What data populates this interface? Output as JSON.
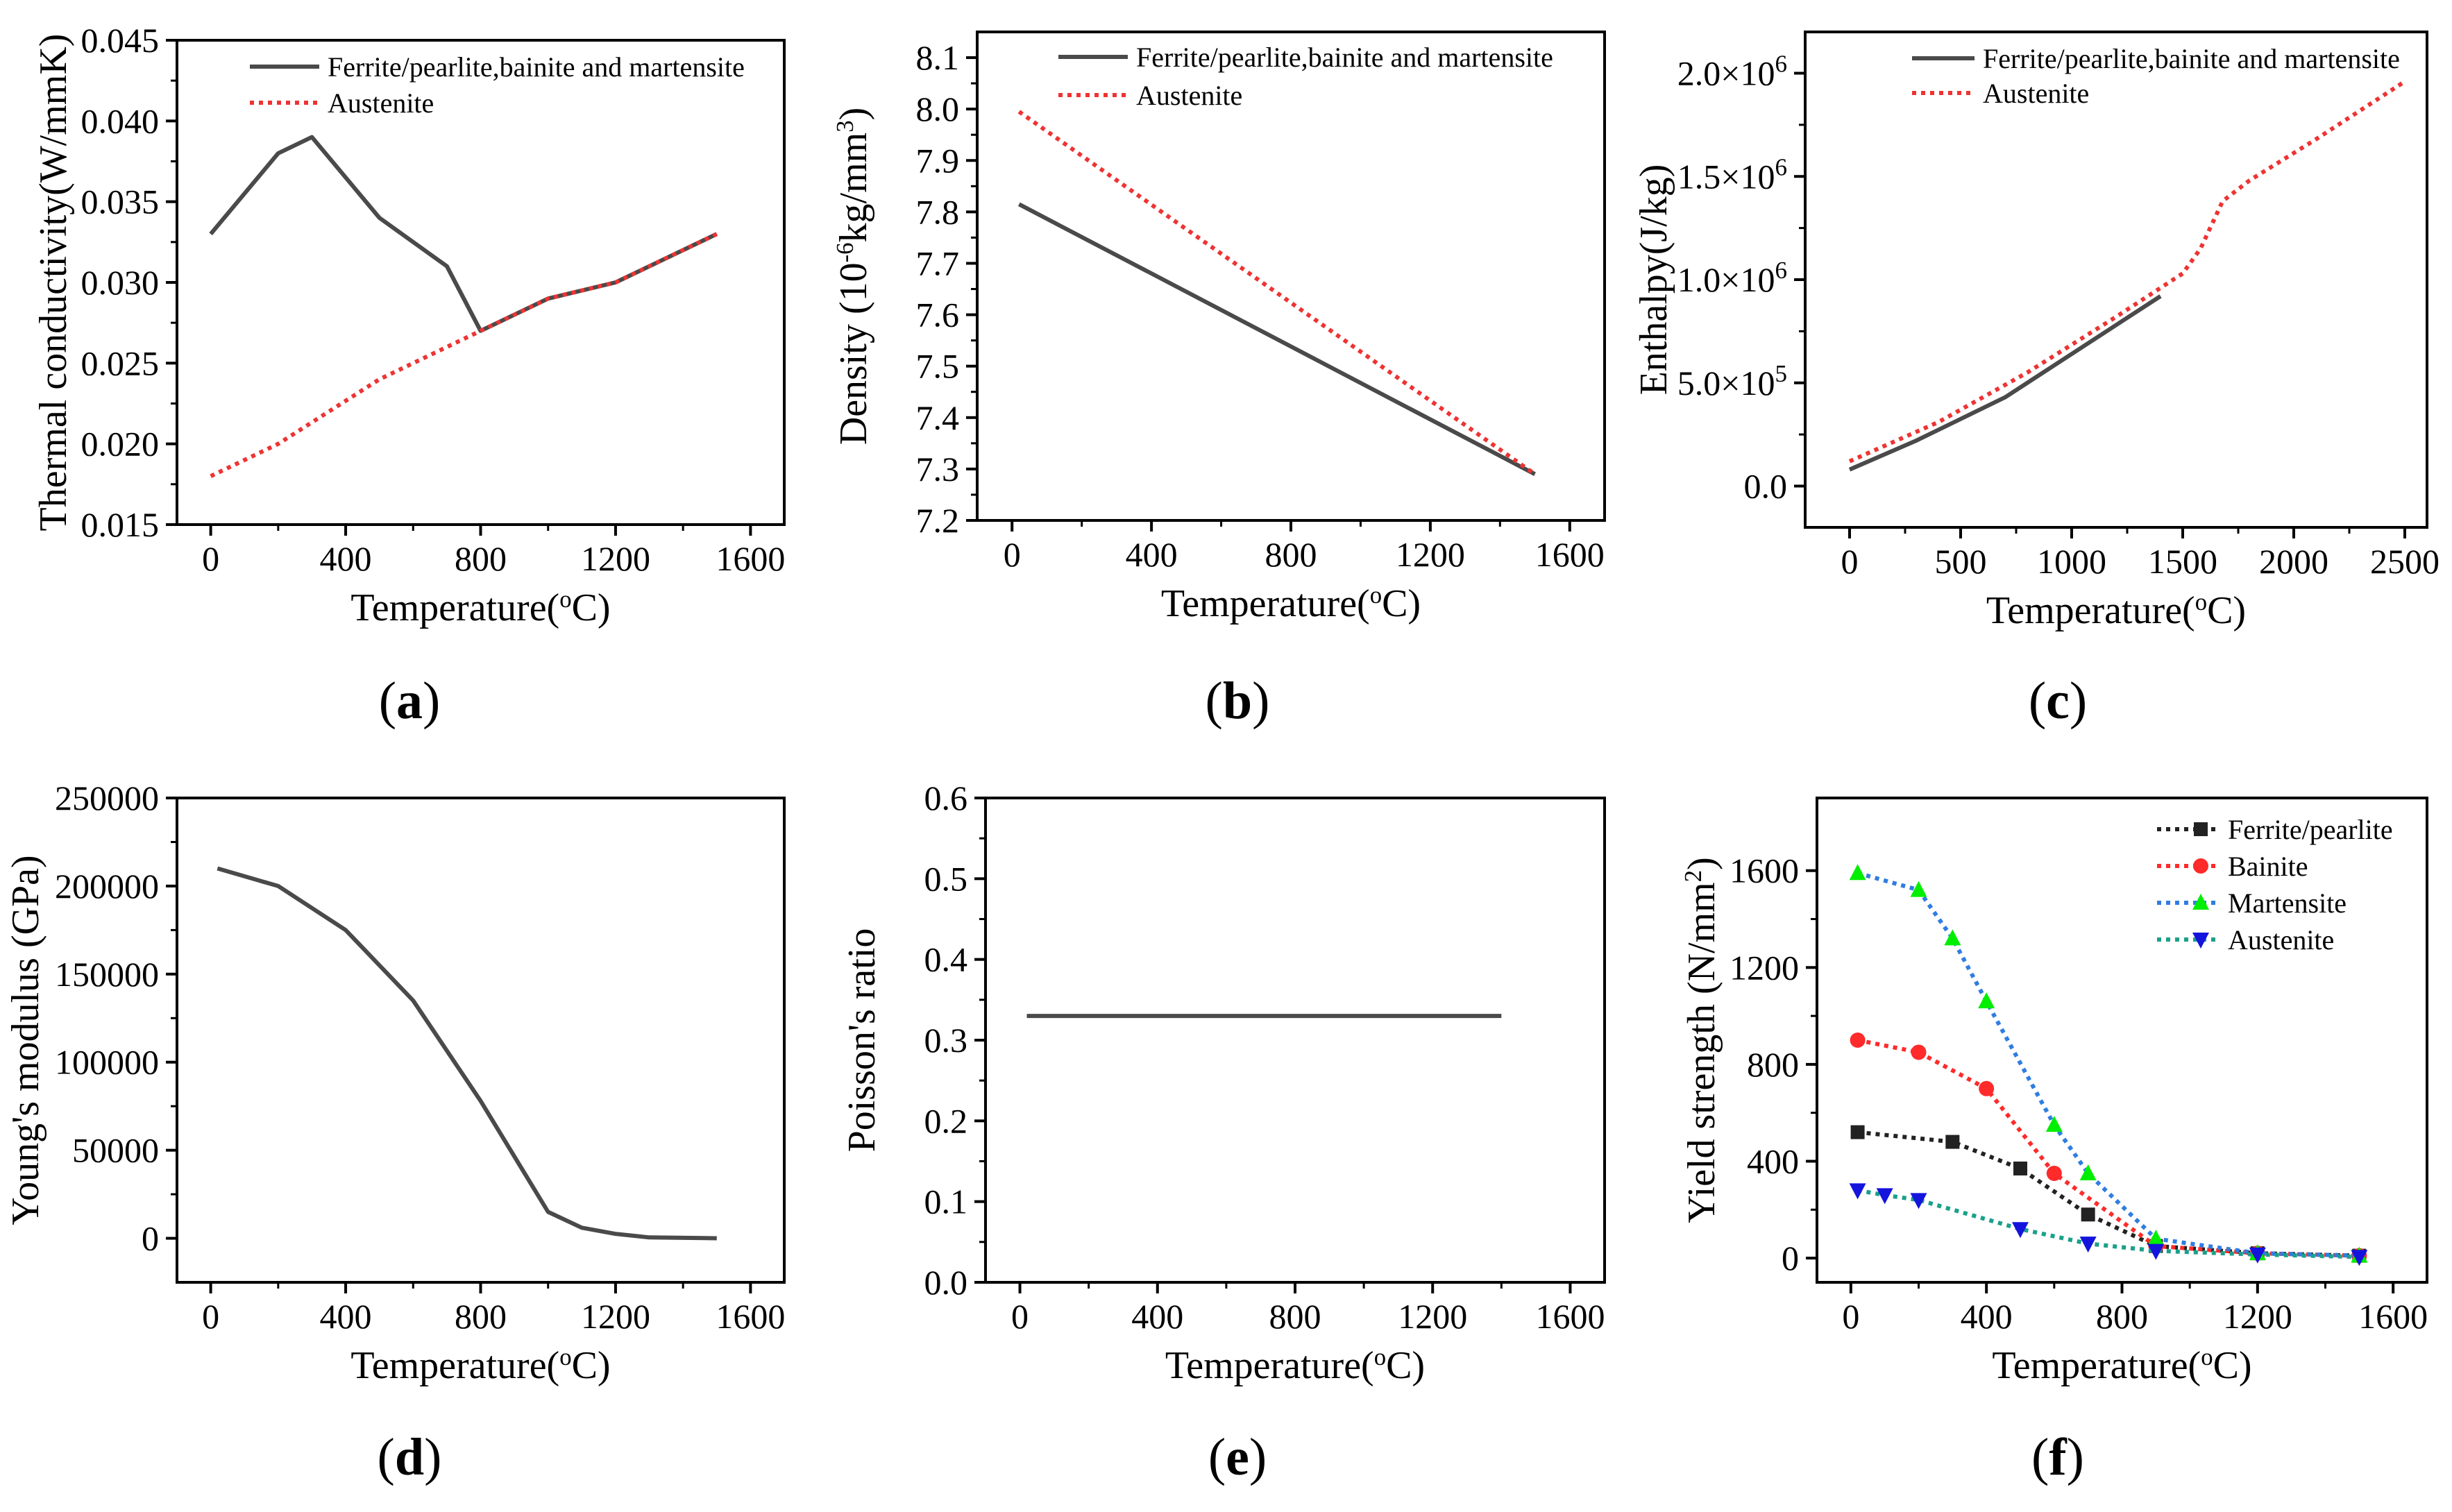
{
  "chart_data": [
    {
      "panel": "a",
      "type": "line",
      "label": "(a)",
      "xlabel": "Temperature(°C)",
      "ylabel": "Thermal conductivity(W/mmK)",
      "xlim": [
        -100,
        1700
      ],
      "ylim": [
        0.015,
        0.045
      ],
      "xticks": [
        0,
        400,
        800,
        1200,
        1600
      ],
      "yticks": [
        0.015,
        0.02,
        0.025,
        0.03,
        0.035,
        0.04,
        0.045
      ],
      "ytick_labels": [
        "0.015",
        "0.020",
        "0.025",
        "0.030",
        "0.035",
        "0.040",
        "0.045"
      ],
      "legend_position": "top-right",
      "series": [
        {
          "name": "Ferrite/pearlite,bainite and martensite",
          "color": "#4a4a4a",
          "style": "solid",
          "x": [
            0,
            200,
            300,
            500,
            700,
            800,
            1000,
            1200,
            1500
          ],
          "y": [
            0.033,
            0.038,
            0.039,
            0.034,
            0.031,
            0.027,
            0.029,
            0.03,
            0.033
          ]
        },
        {
          "name": "Austenite",
          "color": "#ee3333",
          "style": "dotted",
          "x": [
            0,
            200,
            500,
            800,
            1000,
            1200,
            1500
          ],
          "y": [
            0.018,
            0.02,
            0.024,
            0.027,
            0.029,
            0.03,
            0.033
          ]
        }
      ]
    },
    {
      "panel": "b",
      "type": "line",
      "label": "(b)",
      "xlabel": "Temperature(°C)",
      "ylabel": "Density (10⁻⁶kg/mm³)",
      "xlim": [
        -100,
        1700
      ],
      "ylim": [
        7.2,
        8.15
      ],
      "xticks": [
        0,
        400,
        800,
        1200,
        1600
      ],
      "yticks": [
        7.2,
        7.3,
        7.4,
        7.5,
        7.6,
        7.7,
        7.8,
        7.9,
        8.0,
        8.1
      ],
      "ytick_labels": [
        "7.2",
        "7.3",
        "7.4",
        "7.5",
        "7.6",
        "7.7",
        "7.8",
        "7.9",
        "8.0",
        "8.1"
      ],
      "legend_position": "top-right",
      "series": [
        {
          "name": "Ferrite/pearlite,bainite and martensite",
          "color": "#4a4a4a",
          "style": "solid",
          "x": [
            20,
            1500
          ],
          "y": [
            7.815,
            7.29
          ]
        },
        {
          "name": "Austenite",
          "color": "#ee3333",
          "style": "dotted",
          "x": [
            20,
            1500
          ],
          "y": [
            7.995,
            7.29
          ]
        }
      ]
    },
    {
      "panel": "c",
      "type": "line",
      "label": "(c)",
      "xlabel": "Temperature(°C)",
      "ylabel": "Enthalpy(J/kg)",
      "xlim": [
        -200,
        2600
      ],
      "ylim": [
        -200000,
        2200000
      ],
      "xticks": [
        0,
        500,
        1000,
        1500,
        2000,
        2500
      ],
      "yticks": [
        0,
        500000,
        1000000,
        1500000,
        2000000
      ],
      "ytick_labels": [
        "0.0",
        "5.0×10⁵",
        "1.0×10⁶",
        "1.5×10⁶",
        "2.0×10⁶"
      ],
      "legend_position": "top-left",
      "series": [
        {
          "name": "Ferrite/pearlite,bainite and martensite",
          "color": "#4a4a4a",
          "style": "solid",
          "x": [
            0,
            300,
            700,
            1000,
            1400
          ],
          "y": [
            80000,
            220000,
            430000,
            640000,
            920000
          ]
        },
        {
          "name": "Austenite",
          "color": "#ee3333",
          "style": "dotted",
          "x": [
            0,
            400,
            800,
            1200,
            1500,
            1580,
            1680,
            1800,
            2100,
            2500
          ],
          "y": [
            120000,
            310000,
            550000,
            820000,
            1030000,
            1150000,
            1380000,
            1480000,
            1680000,
            1960000
          ]
        }
      ]
    },
    {
      "panel": "d",
      "type": "line",
      "label": "(d)",
      "xlabel": "Temperature(°C)",
      "ylabel": "Young's modulus (GPa)",
      "xlim": [
        -100,
        1700
      ],
      "ylim": [
        -25000,
        250000
      ],
      "xticks": [
        0,
        400,
        800,
        1200,
        1600
      ],
      "yticks": [
        0,
        50000,
        100000,
        150000,
        200000,
        250000
      ],
      "ytick_labels": [
        "0",
        "50000",
        "100000",
        "150000",
        "200000",
        "250000"
      ],
      "series": [
        {
          "name": "Young's modulus",
          "color": "#4a4a4a",
          "style": "solid",
          "x": [
            20,
            200,
            400,
            600,
            800,
            1000,
            1100,
            1200,
            1300,
            1500
          ],
          "y": [
            210000,
            200000,
            175000,
            135000,
            78000,
            15000,
            6000,
            2500,
            500,
            0
          ]
        }
      ]
    },
    {
      "panel": "e",
      "type": "line",
      "label": "(e)",
      "xlabel": "Temperature(°C)",
      "ylabel": "Poisson's ratio",
      "xlim": [
        -100,
        1700
      ],
      "ylim": [
        0.0,
        0.6
      ],
      "xticks": [
        0,
        400,
        800,
        1200,
        1600
      ],
      "yticks": [
        0.0,
        0.1,
        0.2,
        0.3,
        0.4,
        0.5,
        0.6
      ],
      "ytick_labels": [
        "0.0",
        "0.1",
        "0.2",
        "0.3",
        "0.4",
        "0.5",
        "0.6"
      ],
      "series": [
        {
          "name": "Poisson's ratio",
          "color": "#4a4a4a",
          "style": "solid",
          "x": [
            20,
            1400
          ],
          "y": [
            0.33,
            0.33
          ]
        }
      ]
    },
    {
      "panel": "f",
      "type": "line",
      "label": "(f)",
      "xlabel": "Temperature(°C)",
      "ylabel": "Yield strength (N/mm²)",
      "xlim": [
        -100,
        1700
      ],
      "ylim": [
        -100,
        1900
      ],
      "xticks": [
        0,
        400,
        800,
        1200,
        1600
      ],
      "yticks": [
        0,
        400,
        800,
        1200,
        1600
      ],
      "ytick_labels": [
        "0",
        "400",
        "800",
        "1200",
        "1600"
      ],
      "legend_position": "top-right",
      "series": [
        {
          "name": "Ferrite/pearlite",
          "color": "#222222",
          "marker": "square",
          "style": "dotted",
          "x": [
            20,
            300,
            500,
            700,
            900,
            1200,
            1500
          ],
          "y": [
            520,
            480,
            370,
            180,
            50,
            20,
            10
          ]
        },
        {
          "name": "Bainite",
          "color": "#ff2a2a",
          "marker": "circle",
          "style": "dotted",
          "x": [
            20,
            200,
            400,
            600,
            900,
            1200,
            1500
          ],
          "y": [
            900,
            850,
            700,
            350,
            50,
            20,
            10
          ]
        },
        {
          "name": "Martensite",
          "color": "#00ee00",
          "line_color": "#2f7de1",
          "marker": "triangle-up",
          "style": "dotted",
          "x": [
            20,
            200,
            300,
            400,
            600,
            700,
            900,
            1200,
            1500
          ],
          "y": [
            1590,
            1520,
            1320,
            1060,
            550,
            350,
            80,
            20,
            10
          ]
        },
        {
          "name": "Austenite",
          "color": "#1414dd",
          "line_color": "#1aa08a",
          "marker": "triangle-down",
          "style": "dotted",
          "x": [
            20,
            100,
            200,
            500,
            700,
            900,
            1200,
            1500
          ],
          "y": [
            280,
            260,
            240,
            120,
            60,
            30,
            15,
            5
          ]
        }
      ]
    }
  ]
}
